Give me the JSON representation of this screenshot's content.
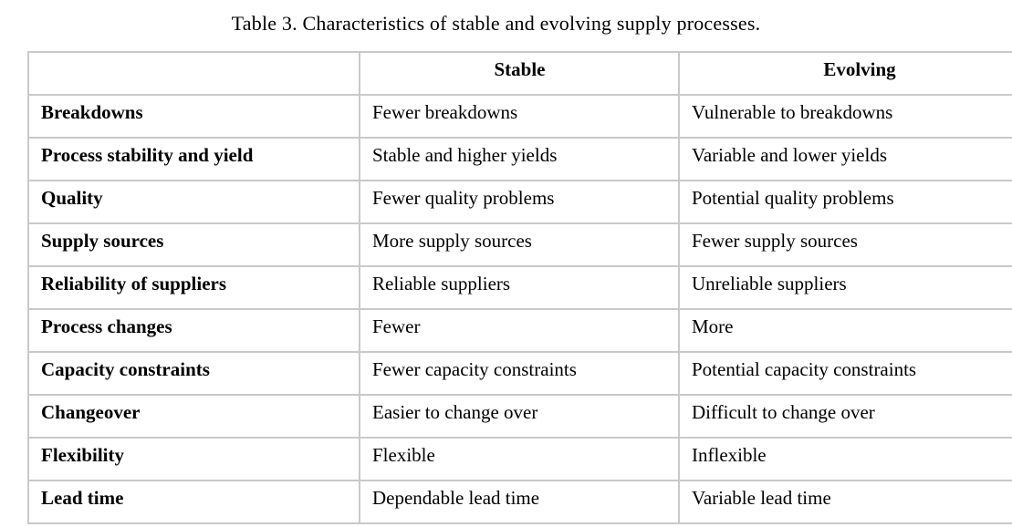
{
  "caption": "Table 3. Characteristics of stable and evolving supply processes.",
  "table": {
    "border_color": "#c9c9c9",
    "text_color": "#000000",
    "headers": [
      "",
      "Stable",
      "Evolving"
    ],
    "rows": [
      {
        "label": "Breakdowns",
        "stable": "Fewer breakdowns",
        "evolving": "Vulnerable to breakdowns"
      },
      {
        "label": "Process stability and yield",
        "stable": "Stable and higher yields",
        "evolving": "Variable and lower yields"
      },
      {
        "label": "Quality",
        "stable": "Fewer quality problems",
        "evolving": "Potential quality problems"
      },
      {
        "label": "Supply sources",
        "stable": "More supply sources",
        "evolving": "Fewer supply sources"
      },
      {
        "label": "Reliability of suppliers",
        "stable": "Reliable suppliers",
        "evolving": "Unreliable suppliers"
      },
      {
        "label": "Process changes",
        "stable": "Fewer",
        "evolving": "More"
      },
      {
        "label": "Capacity constraints",
        "stable": "Fewer capacity constraints",
        "evolving": "Potential capacity constraints"
      },
      {
        "label": "Changeover",
        "stable": "Easier to change over",
        "evolving": "Difficult to change over"
      },
      {
        "label": "Flexibility",
        "stable": "Flexible",
        "evolving": "Inflexible"
      },
      {
        "label": "Lead time",
        "stable": "Dependable lead time",
        "evolving": "Variable lead time"
      }
    ]
  }
}
